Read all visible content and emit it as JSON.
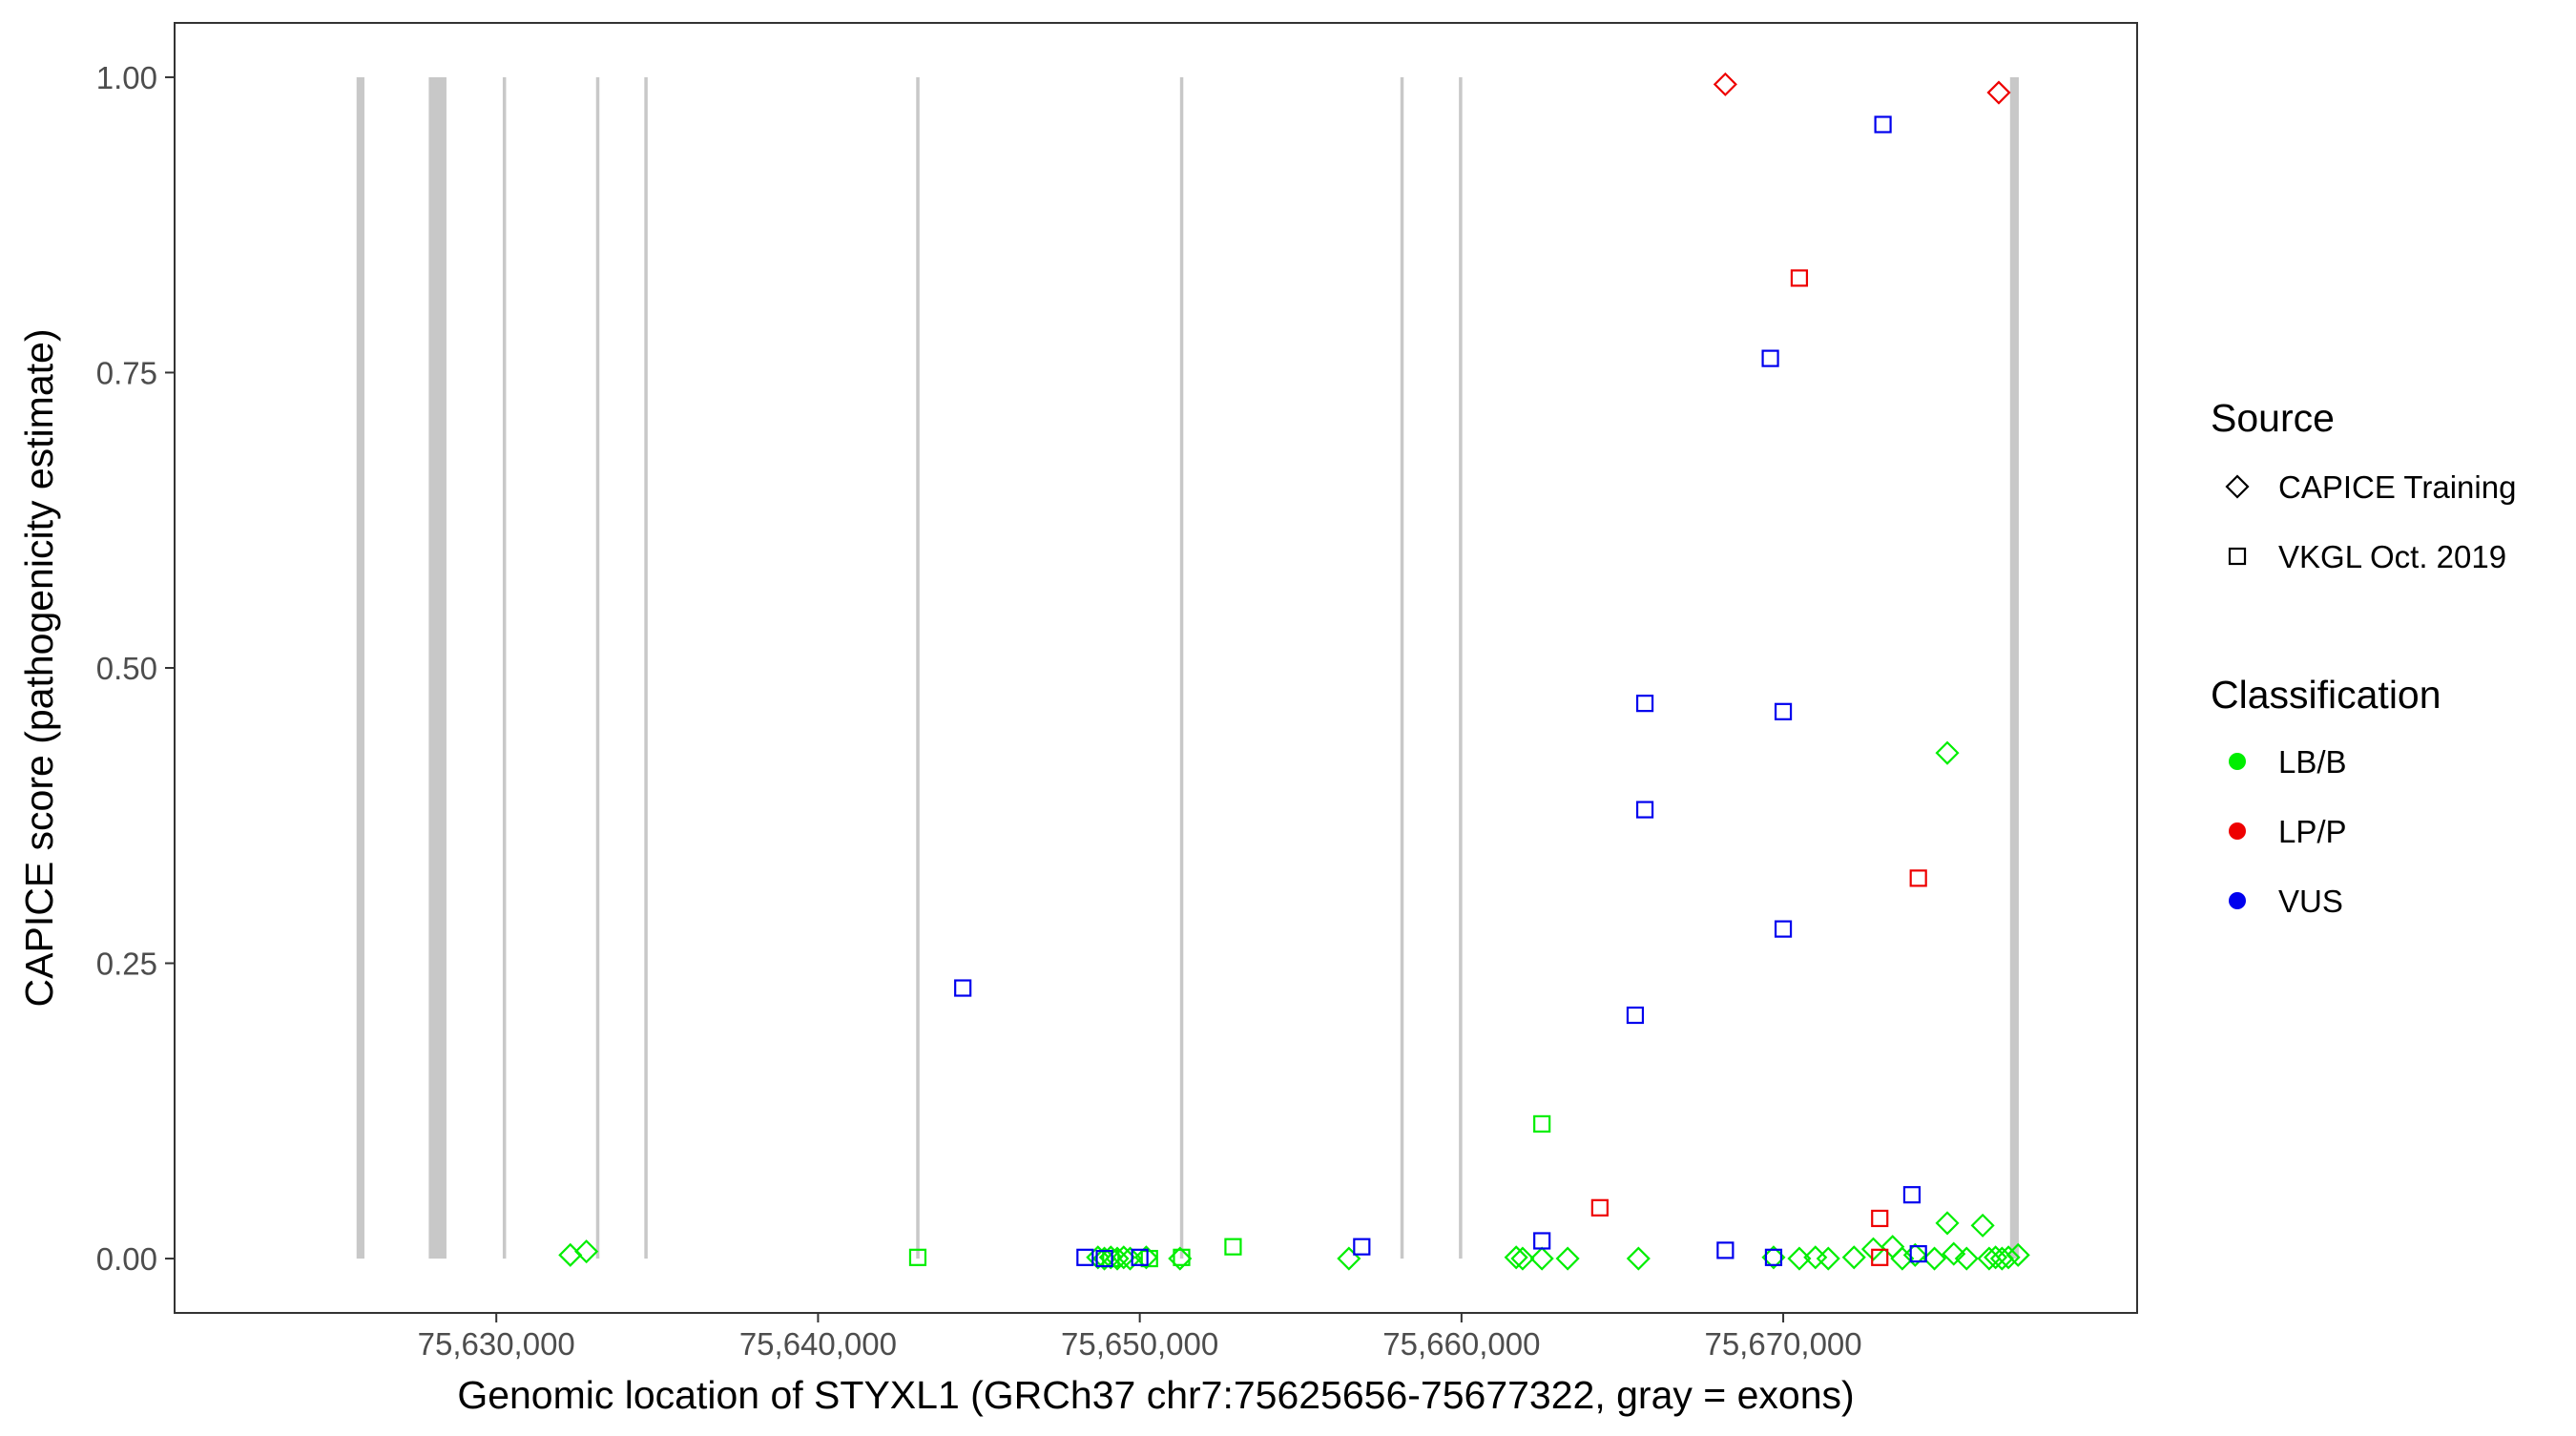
{
  "chart_data": {
    "type": "scatter",
    "xlabel": "Genomic location of STYXL1 (GRCh37 chr7:75625656-75677322, gray = exons)",
    "ylabel": "CAPICE score (pathogenicity estimate)",
    "xlim": [
      75620000,
      75681000
    ],
    "ylim": [
      -0.046,
      1.046
    ],
    "x_ticks": [
      75630000,
      75640000,
      75650000,
      75660000,
      75670000
    ],
    "x_tick_labels": [
      "75,630,000",
      "75,640,000",
      "75,650,000",
      "75,660,000",
      "75,670,000"
    ],
    "y_ticks": [
      0,
      0.25,
      0.5,
      0.75,
      1.0
    ],
    "y_tick_labels": [
      "0.00",
      "0.25",
      "0.50",
      "0.75",
      "1.00"
    ],
    "grid": false,
    "exons": [
      [
        75625656,
        75625900
      ],
      [
        75627900,
        75628450
      ],
      [
        75630200,
        75630260
      ],
      [
        75633100,
        75633160
      ],
      [
        75634600,
        75634660
      ],
      [
        75643050,
        75643110
      ],
      [
        75651250,
        75651330
      ],
      [
        75658100,
        75658150
      ],
      [
        75659920,
        75659980
      ],
      [
        75677050,
        75677322
      ]
    ],
    "legend": {
      "position": "right",
      "shape_title": "Source",
      "shape_items": [
        {
          "label": "CAPICE Training",
          "shape": "diamond"
        },
        {
          "label": "VKGL Oct. 2019",
          "shape": "square"
        }
      ],
      "color_title": "Classification",
      "color_items": [
        {
          "label": "LB/B",
          "color": "#00ee00"
        },
        {
          "label": "LP/P",
          "color": "#ee0000"
        },
        {
          "label": "VUS",
          "color": "#0000ee"
        }
      ]
    },
    "colors": {
      "LB/B": "#00ee00",
      "LP/P": "#ee0000",
      "VUS": "#0000ee"
    },
    "points": [
      {
        "x": 75632300,
        "y": 0.003,
        "source": "CAPICE Training",
        "class": "LB/B"
      },
      {
        "x": 75632800,
        "y": 0.006,
        "source": "CAPICE Training",
        "class": "LB/B"
      },
      {
        "x": 75648700,
        "y": 0.001,
        "source": "CAPICE Training",
        "class": "LB/B"
      },
      {
        "x": 75648900,
        "y": 0.0,
        "source": "CAPICE Training",
        "class": "LB/B"
      },
      {
        "x": 75649100,
        "y": 0.001,
        "source": "CAPICE Training",
        "class": "LB/B"
      },
      {
        "x": 75649300,
        "y": 0.0,
        "source": "CAPICE Training",
        "class": "LB/B"
      },
      {
        "x": 75649500,
        "y": 0.001,
        "source": "CAPICE Training",
        "class": "LB/B"
      },
      {
        "x": 75649700,
        "y": 0.0,
        "source": "CAPICE Training",
        "class": "LB/B"
      },
      {
        "x": 75650200,
        "y": 0.001,
        "source": "CAPICE Training",
        "class": "LB/B"
      },
      {
        "x": 75651250,
        "y": 0.0,
        "source": "CAPICE Training",
        "class": "LB/B"
      },
      {
        "x": 75656500,
        "y": 0.0,
        "source": "CAPICE Training",
        "class": "LB/B"
      },
      {
        "x": 75661700,
        "y": 0.001,
        "source": "CAPICE Training",
        "class": "LB/B"
      },
      {
        "x": 75661900,
        "y": 0.0,
        "source": "CAPICE Training",
        "class": "LB/B"
      },
      {
        "x": 75662500,
        "y": 0.0,
        "source": "CAPICE Training",
        "class": "LB/B"
      },
      {
        "x": 75663300,
        "y": 0.0,
        "source": "CAPICE Training",
        "class": "LB/B"
      },
      {
        "x": 75665500,
        "y": 0.0,
        "source": "CAPICE Training",
        "class": "LB/B"
      },
      {
        "x": 75669700,
        "y": 0.001,
        "source": "CAPICE Training",
        "class": "LB/B"
      },
      {
        "x": 75670500,
        "y": 0.0,
        "source": "CAPICE Training",
        "class": "LB/B"
      },
      {
        "x": 75671000,
        "y": 0.001,
        "source": "CAPICE Training",
        "class": "LB/B"
      },
      {
        "x": 75671400,
        "y": 0.0,
        "source": "CAPICE Training",
        "class": "LB/B"
      },
      {
        "x": 75672200,
        "y": 0.001,
        "source": "CAPICE Training",
        "class": "LB/B"
      },
      {
        "x": 75672800,
        "y": 0.008,
        "source": "CAPICE Training",
        "class": "LB/B"
      },
      {
        "x": 75673400,
        "y": 0.01,
        "source": "CAPICE Training",
        "class": "LB/B"
      },
      {
        "x": 75673700,
        "y": 0.0,
        "source": "CAPICE Training",
        "class": "LB/B"
      },
      {
        "x": 75674100,
        "y": 0.003,
        "source": "CAPICE Training",
        "class": "LB/B"
      },
      {
        "x": 75674700,
        "y": 0.0,
        "source": "CAPICE Training",
        "class": "LB/B"
      },
      {
        "x": 75675100,
        "y": 0.03,
        "source": "CAPICE Training",
        "class": "LB/B"
      },
      {
        "x": 75675100,
        "y": 0.428,
        "source": "CAPICE Training",
        "class": "LB/B"
      },
      {
        "x": 75675300,
        "y": 0.004,
        "source": "CAPICE Training",
        "class": "LB/B"
      },
      {
        "x": 75675700,
        "y": 0.0,
        "source": "CAPICE Training",
        "class": "LB/B"
      },
      {
        "x": 75676200,
        "y": 0.028,
        "source": "CAPICE Training",
        "class": "LB/B"
      },
      {
        "x": 75676400,
        "y": 0.0,
        "source": "CAPICE Training",
        "class": "LB/B"
      },
      {
        "x": 75676600,
        "y": 0.001,
        "source": "CAPICE Training",
        "class": "LB/B"
      },
      {
        "x": 75676800,
        "y": 0.0,
        "source": "CAPICE Training",
        "class": "LB/B"
      },
      {
        "x": 75677000,
        "y": 0.001,
        "source": "CAPICE Training",
        "class": "LB/B"
      },
      {
        "x": 75677300,
        "y": 0.003,
        "source": "CAPICE Training",
        "class": "LB/B"
      },
      {
        "x": 75668200,
        "y": 0.994,
        "source": "CAPICE Training",
        "class": "LP/P"
      },
      {
        "x": 75676700,
        "y": 0.987,
        "source": "CAPICE Training",
        "class": "LP/P"
      },
      {
        "x": 75643100,
        "y": 0.001,
        "source": "VKGL Oct. 2019",
        "class": "LB/B"
      },
      {
        "x": 75649100,
        "y": 0.0,
        "source": "VKGL Oct. 2019",
        "class": "LB/B"
      },
      {
        "x": 75650300,
        "y": 0.0,
        "source": "VKGL Oct. 2019",
        "class": "LB/B"
      },
      {
        "x": 75651300,
        "y": 0.001,
        "source": "VKGL Oct. 2019",
        "class": "LB/B"
      },
      {
        "x": 75652900,
        "y": 0.01,
        "source": "VKGL Oct. 2019",
        "class": "LB/B"
      },
      {
        "x": 75662500,
        "y": 0.114,
        "source": "VKGL Oct. 2019",
        "class": "LB/B"
      },
      {
        "x": 75664300,
        "y": 0.043,
        "source": "VKGL Oct. 2019",
        "class": "LP/P"
      },
      {
        "x": 75670500,
        "y": 0.83,
        "source": "VKGL Oct. 2019",
        "class": "LP/P"
      },
      {
        "x": 75673000,
        "y": 0.034,
        "source": "VKGL Oct. 2019",
        "class": "LP/P"
      },
      {
        "x": 75673000,
        "y": 0.001,
        "source": "VKGL Oct. 2019",
        "class": "LP/P"
      },
      {
        "x": 75674200,
        "y": 0.322,
        "source": "VKGL Oct. 2019",
        "class": "LP/P"
      },
      {
        "x": 75644500,
        "y": 0.229,
        "source": "VKGL Oct. 2019",
        "class": "VUS"
      },
      {
        "x": 75648300,
        "y": 0.001,
        "source": "VKGL Oct. 2019",
        "class": "VUS"
      },
      {
        "x": 75648900,
        "y": 0.0,
        "source": "VKGL Oct. 2019",
        "class": "VUS"
      },
      {
        "x": 75650000,
        "y": 0.001,
        "source": "VKGL Oct. 2019",
        "class": "VUS"
      },
      {
        "x": 75656900,
        "y": 0.01,
        "source": "VKGL Oct. 2019",
        "class": "VUS"
      },
      {
        "x": 75662500,
        "y": 0.015,
        "source": "VKGL Oct. 2019",
        "class": "VUS"
      },
      {
        "x": 75665400,
        "y": 0.206,
        "source": "VKGL Oct. 2019",
        "class": "VUS"
      },
      {
        "x": 75665700,
        "y": 0.47,
        "source": "VKGL Oct. 2019",
        "class": "VUS"
      },
      {
        "x": 75665700,
        "y": 0.38,
        "source": "VKGL Oct. 2019",
        "class": "VUS"
      },
      {
        "x": 75668200,
        "y": 0.007,
        "source": "VKGL Oct. 2019",
        "class": "VUS"
      },
      {
        "x": 75669600,
        "y": 0.762,
        "source": "VKGL Oct. 2019",
        "class": "VUS"
      },
      {
        "x": 75669700,
        "y": 0.001,
        "source": "VKGL Oct. 2019",
        "class": "VUS"
      },
      {
        "x": 75670000,
        "y": 0.463,
        "source": "VKGL Oct. 2019",
        "class": "VUS"
      },
      {
        "x": 75670000,
        "y": 0.279,
        "source": "VKGL Oct. 2019",
        "class": "VUS"
      },
      {
        "x": 75673100,
        "y": 0.96,
        "source": "VKGL Oct. 2019",
        "class": "VUS"
      },
      {
        "x": 75674000,
        "y": 0.054,
        "source": "VKGL Oct. 2019",
        "class": "VUS"
      },
      {
        "x": 75674200,
        "y": 0.004,
        "source": "VKGL Oct. 2019",
        "class": "VUS"
      }
    ]
  }
}
